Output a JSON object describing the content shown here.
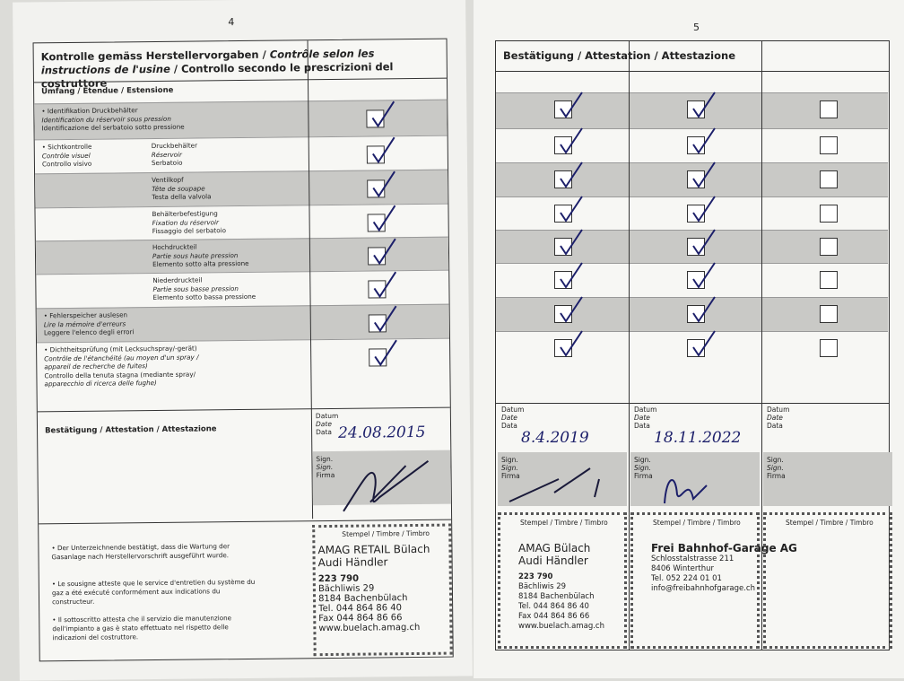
{
  "left_page": {
    "page_number": "4",
    "title_de": "Kontrolle gemäss Herstellervorgaben / ",
    "title_fr": "Contrôle selon les instructions de l'usine",
    "title_it": " / Controllo secondo le prescrizioni del costruttore",
    "scope_heading": "Umfang / Étendue / Estensione",
    "rows": [
      {
        "a": [
          "• Identifikation Druckbehälter",
          "Identification du réservoir sous pression",
          "Identificazione del serbatoio sotto pressione"
        ],
        "b": [],
        "checked": true
      },
      {
        "a": [
          "• Sichtkontrolle",
          "Contrôle visuel",
          "Controllo visivo"
        ],
        "b": [
          "Druckbehälter",
          "Réservoir",
          "Serbatoio"
        ],
        "checked": true
      },
      {
        "a": [],
        "b": [
          "Ventilkopf",
          "Tête de soupape",
          "Testa della valvola"
        ],
        "checked": true
      },
      {
        "a": [],
        "b": [
          "Behälterbefestigung",
          "Fixation du réservoir",
          "Fissaggio del serbatoio"
        ],
        "checked": true
      },
      {
        "a": [],
        "b": [
          "Hochdruckteil",
          "Partie sous haute pression",
          "Elemento sotto alta pressione"
        ],
        "checked": true
      },
      {
        "a": [],
        "b": [
          "Niederdruckteil",
          "Partie sous basse pression",
          "Elemento sotto bassa pressione"
        ],
        "checked": true
      },
      {
        "a": [
          "• Fehlerspeicher auslesen",
          "Lire la mémoire d'erreurs",
          "Leggere l'elenco degli errori"
        ],
        "b": [],
        "checked": true
      },
      {
        "a": [
          "• Dichtheitsprüfung (mit Lecksuchspray/-gerät)",
          "Contrôle de l'étanchéité (au moyen d'un spray /",
          "appareil de recherche de fuites)",
          "Controllo della tenuta stagna (mediante spray/",
          "apparecchio di ricerca delle fughe)"
        ],
        "b": [],
        "checked": true
      }
    ],
    "attestation_label": "Bestätigung / Attestation / Attestazione",
    "date_labels": [
      "Datum",
      "Date",
      "Data"
    ],
    "date_value": "24.08.2015",
    "sign_labels": [
      "Sign.",
      "Sign.",
      "Firma"
    ],
    "bullets": [
      "• Der Unterzeichnende bestätigt, dass die Wartung der Gasanlage nach Herstellervorschrift ausgeführt wurde.",
      "• Le sousigne atteste que le service d'entretien du système du gaz a été exécuté conformément aux indications du constructeur.",
      "• Il sottoscritto attesta che il servizio die manutenzione dell'impianto a gas è stato effettuato nel rispetto delle indicazioni del costruttore."
    ],
    "stamp_label": "Stempel / Timbre / Timbro",
    "stamp": [
      "AMAG RETAIL Bülach",
      "Audi Händler",
      "223 790",
      "Bächliwis 29",
      "8184 Bachenbülach",
      "Tel. 044 864 86 40",
      "Fax 044 864 86 66",
      "www.buelach.amag.ch"
    ]
  },
  "right_page": {
    "page_number": "5",
    "title": "Bestätigung / Attestation / Attestazione",
    "columns": [
      {
        "checks": [
          true,
          true,
          true,
          true,
          true,
          true,
          true,
          true
        ],
        "date": "8.4.2019",
        "stamp": [
          "AMAG Bülach",
          "Audi Händler",
          "223 790",
          "Bächliwis 29",
          "8184 Bachenbülach",
          "Tel. 044 864 86 40",
          "Fax 044 864 86 66",
          "www.buelach.amag.ch"
        ]
      },
      {
        "checks": [
          true,
          true,
          true,
          true,
          true,
          true,
          true,
          true
        ],
        "date": "18.11.2022",
        "stamp": [
          "Frei Bahnhof-Garage AG",
          "Schlosstalstrasse 211",
          "8406 Winterthur",
          "Tel. 052 224 01 01",
          "info@freibahnhofgarage.ch"
        ]
      },
      {
        "checks": [
          false,
          false,
          false,
          false,
          false,
          false,
          false,
          false
        ],
        "date": "",
        "stamp": []
      }
    ],
    "date_labels": [
      "Datum",
      "Date",
      "Data"
    ],
    "sign_labels": [
      "Sign.",
      "Sign.",
      "Firma"
    ],
    "stamp_label": "Stempel / Timbre / Timbro"
  },
  "colors": {
    "ink": "#1c1f6a",
    "row_shade": "#c9c9c6"
  }
}
